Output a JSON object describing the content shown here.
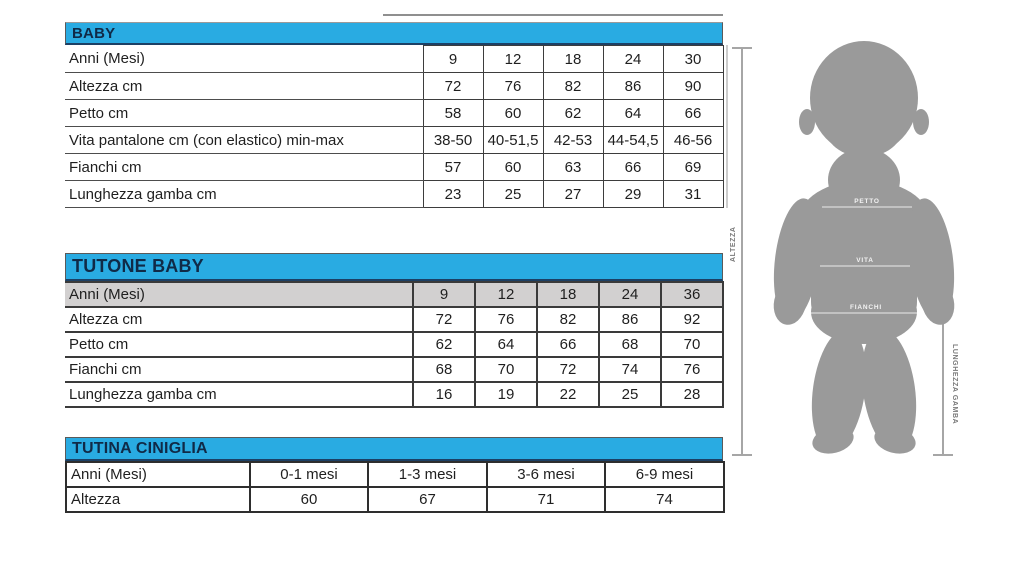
{
  "accent_color": "#29abe2",
  "header_text_color": "#102a47",
  "silhouette_color": "#9a9a9a",
  "tables": [
    {
      "id": "baby",
      "title": "BABY",
      "rows": [
        {
          "label": "Anni (Mesi)",
          "values": [
            "9",
            "12",
            "18",
            "24",
            "30"
          ]
        },
        {
          "label": "Altezza cm",
          "values": [
            "72",
            "76",
            "82",
            "86",
            "90"
          ]
        },
        {
          "label": "Petto cm",
          "values": [
            "58",
            "60",
            "62",
            "64",
            "66"
          ]
        },
        {
          "label": "Vita pantalone cm (con elastico) min-max",
          "values": [
            "38-50",
            "40-51,5",
            "42-53",
            "44-54,5",
            "46-56"
          ]
        },
        {
          "label": "Fianchi cm",
          "values": [
            "57",
            "60",
            "63",
            "66",
            "69"
          ]
        },
        {
          "label": "Lunghezza gamba cm",
          "values": [
            "23",
            "25",
            "27",
            "29",
            "31"
          ]
        }
      ]
    },
    {
      "id": "tutone-baby",
      "title": "TUTONE BABY",
      "rows": [
        {
          "label": "Anni (Mesi)",
          "values": [
            "9",
            "12",
            "18",
            "24",
            "36"
          ],
          "highlight": true
        },
        {
          "label": "Altezza cm",
          "values": [
            "72",
            "76",
            "82",
            "86",
            "92"
          ]
        },
        {
          "label": "Petto cm",
          "values": [
            "62",
            "64",
            "66",
            "68",
            "70"
          ]
        },
        {
          "label": "Fianchi cm",
          "values": [
            "68",
            "70",
            "72",
            "74",
            "76"
          ]
        },
        {
          "label": "Lunghezza gamba cm",
          "values": [
            "16",
            "19",
            "22",
            "25",
            "28"
          ]
        }
      ]
    },
    {
      "id": "tutina-ciniglia",
      "title": "TUTINA CINIGLIA",
      "rows": [
        {
          "label": "Anni (Mesi)",
          "values": [
            "0-1 mesi",
            "1-3 mesi",
            "3-6 mesi",
            "6-9 mesi"
          ]
        },
        {
          "label": "Altezza",
          "values": [
            "60",
            "67",
            "71",
            "74"
          ]
        }
      ]
    }
  ],
  "figure": {
    "labels": {
      "altezza": "ALTEZZA",
      "lunghezza_gamba": "LUNGHEZZA GAMBA",
      "petto": "PETTO",
      "vita": "VITA",
      "fianchi": "FIANCHI"
    }
  }
}
